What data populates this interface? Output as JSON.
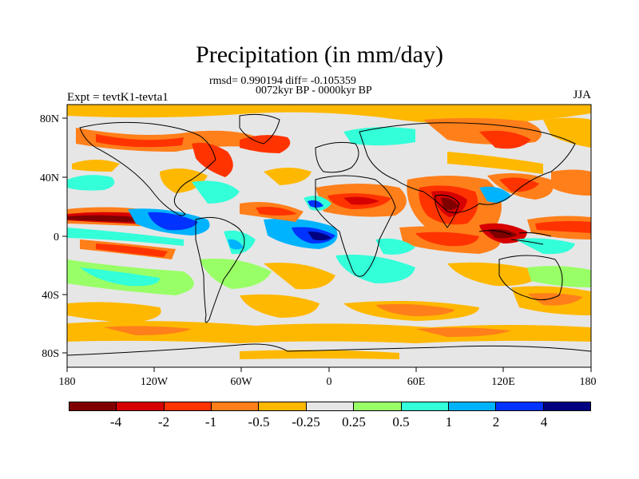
{
  "title": "Precipitation (in mm/day)",
  "stats": "rmsd= 0.990194 diff= -0.105359",
  "period": "0072kyr BP - 0000kyr BP",
  "experiment": "Expt = tevtK1-tevta1",
  "season": "JJA",
  "lat_labels": [
    "80N",
    "40N",
    "0",
    "40S",
    "80S"
  ],
  "lon_labels": [
    "180",
    "120W",
    "60W",
    "0",
    "60E",
    "120E",
    "180"
  ],
  "colorbar": {
    "labels": [
      "-4",
      "-2",
      "-1",
      "-0.5",
      "-0.25",
      "0.25",
      "0.5",
      "1",
      "2",
      "4"
    ],
    "colors": [
      "#800000",
      "#d70000",
      "#ff3300",
      "#ff7f1a",
      "#ffb800",
      "#e6e6e6",
      "#99ff66",
      "#33ffd9",
      "#00b3ff",
      "#0033ff",
      "#000080"
    ]
  }
}
